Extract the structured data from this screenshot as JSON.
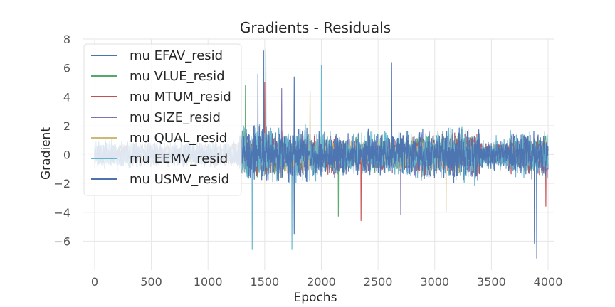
{
  "chart_data": {
    "type": "line",
    "title": "Gradients - Residuals",
    "xlabel": "Epochs",
    "ylabel": "Gradient",
    "xlim": [
      -100,
      4050
    ],
    "ylim": [
      -8,
      8
    ],
    "xticks": [
      0,
      500,
      1000,
      1500,
      2000,
      2500,
      3000,
      3500,
      4000
    ],
    "yticks": [
      -6,
      -4,
      -2,
      0,
      2,
      4,
      6,
      8
    ],
    "ytick_labels": [
      "−6",
      "−4",
      "−2",
      "0",
      "2",
      "4",
      "6",
      "8"
    ],
    "grid": true,
    "legend_location": "upper-left",
    "series": [
      {
        "name": "mu EFAV_resid",
        "color": "#4c72b0",
        "amplitude": 2.0,
        "spikes": [
          [
            1440,
            5.6
          ],
          [
            1760,
            -5.5
          ],
          [
            3880,
            -6.0
          ]
        ]
      },
      {
        "name": "mu VLUE_resid",
        "color": "#55a868",
        "amplitude": 1.6,
        "spikes": [
          [
            1330,
            4.8
          ],
          [
            2150,
            -4.3
          ]
        ]
      },
      {
        "name": "mu MTUM_resid",
        "color": "#c44e52",
        "amplitude": 1.7,
        "spikes": [
          [
            1500,
            5.0
          ],
          [
            2350,
            -4.6
          ],
          [
            3980,
            -3.6
          ]
        ]
      },
      {
        "name": "mu SIZE_resid",
        "color": "#8172b2",
        "amplitude": 1.6,
        "spikes": [
          [
            1650,
            4.6
          ],
          [
            2700,
            -4.2
          ]
        ]
      },
      {
        "name": "mu QUAL_resid",
        "color": "#ccb974",
        "amplitude": 1.5,
        "spikes": [
          [
            1900,
            4.4
          ],
          [
            3100,
            -4.0
          ]
        ]
      },
      {
        "name": "mu EEMV_resid",
        "color": "#64b5cd",
        "amplitude": 2.3,
        "spikes": [
          [
            1510,
            7.3
          ],
          [
            1390,
            -6.6
          ],
          [
            1740,
            -6.6
          ],
          [
            2000,
            6.2
          ],
          [
            3900,
            -6.0
          ]
        ]
      },
      {
        "name": "mu USMV_resid",
        "color": "#4c72b0",
        "amplitude": 2.2,
        "spikes": [
          [
            1490,
            7.2
          ],
          [
            3900,
            -7.2
          ],
          [
            3880,
            -6.2
          ],
          [
            1760,
            5.4
          ],
          [
            2620,
            6.4
          ]
        ]
      }
    ]
  }
}
